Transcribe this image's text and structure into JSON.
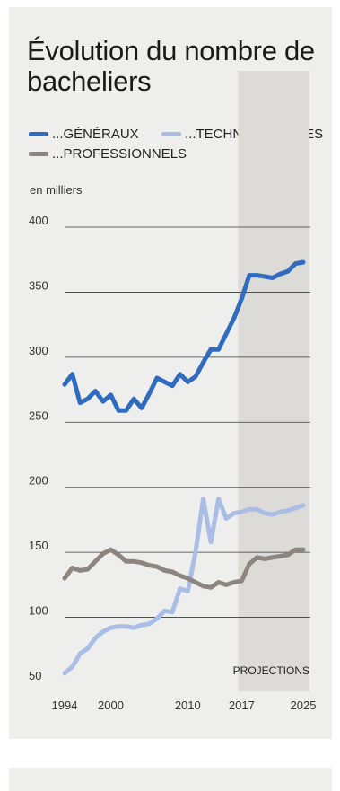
{
  "chart_data": {
    "type": "line",
    "title": "Évolution du nombre de bacheliers",
    "unit_label": "en milliers",
    "ylim": [
      50,
      400
    ],
    "yticks": [
      50,
      100,
      150,
      200,
      250,
      300,
      350,
      400
    ],
    "xlim": [
      1994,
      2025
    ],
    "xticks": [
      1994,
      2000,
      2010,
      2017,
      2025
    ],
    "grid": true,
    "legend_position": "top",
    "projection": {
      "from": 2017,
      "to": 2025,
      "label": "PROJECTIONS"
    },
    "series": [
      {
        "name": "...GÉNÉRAUX",
        "color": "#2f6cc0",
        "x": [
          1994,
          1995,
          1996,
          1997,
          1998,
          1999,
          2000,
          2001,
          2002,
          2003,
          2004,
          2005,
          2006,
          2007,
          2008,
          2009,
          2010,
          2011,
          2012,
          2013,
          2014,
          2015,
          2016,
          2017,
          2018,
          2019,
          2020,
          2021,
          2022,
          2023,
          2024,
          2025
        ],
        "values": [
          279,
          287,
          265,
          268,
          274,
          266,
          271,
          259,
          259,
          268,
          261,
          272,
          284,
          281,
          278,
          287,
          281,
          285,
          296,
          306,
          306,
          318,
          330,
          345,
          363,
          363,
          362,
          361,
          364,
          366,
          372,
          373
        ]
      },
      {
        "name": "...TECHNOLOGIQUES",
        "color": "#a9bde5",
        "x": [
          1994,
          1995,
          1996,
          1997,
          1998,
          1999,
          2000,
          2001,
          2002,
          2003,
          2004,
          2005,
          2006,
          2007,
          2008,
          2009,
          2010,
          2011,
          2012,
          2013,
          2014,
          2015,
          2016,
          2017,
          2018,
          2019,
          2020,
          2021,
          2022,
          2023,
          2024,
          2025
        ],
        "values": [
          57,
          62,
          72,
          76,
          84,
          89,
          92,
          93,
          93,
          92,
          94,
          95,
          99,
          105,
          104,
          122,
          120,
          150,
          191,
          158,
          191,
          176,
          180,
          181,
          183,
          183,
          180,
          179,
          181,
          182,
          184,
          186
        ]
      },
      {
        "name": "...PROFESSIONNELS",
        "color": "#8c8580",
        "x": [
          1994,
          1995,
          1996,
          1997,
          1998,
          1999,
          2000,
          2001,
          2002,
          2003,
          2004,
          2005,
          2006,
          2007,
          2008,
          2009,
          2010,
          2011,
          2012,
          2013,
          2014,
          2015,
          2016,
          2017,
          2018,
          2019,
          2020,
          2021,
          2022,
          2023,
          2024,
          2025
        ],
        "values": [
          130,
          138,
          136,
          137,
          143,
          149,
          152,
          148,
          143,
          143,
          142,
          140,
          139,
          136,
          135,
          132,
          130,
          127,
          124,
          123,
          127,
          125,
          127,
          128,
          141,
          146,
          145,
          146,
          147,
          148,
          152,
          152
        ]
      }
    ]
  }
}
